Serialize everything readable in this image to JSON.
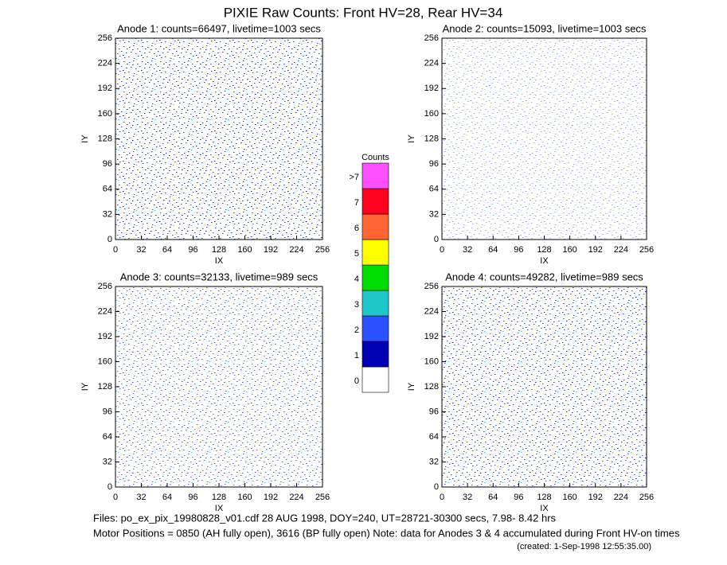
{
  "title": "PIXIE Raw Counts:  Front HV=28, Rear HV=34",
  "chart_data": [
    {
      "type": "heatmap",
      "title": "Anode 1: counts=66497, livetime=1003 secs",
      "x_label": "IX",
      "y_label": "IY",
      "xlim": [
        0,
        256
      ],
      "ylim": [
        0,
        256
      ],
      "xticks": [
        0,
        32,
        64,
        96,
        128,
        160,
        192,
        224,
        256
      ],
      "yticks": [
        0,
        32,
        64,
        96,
        128,
        160,
        192,
        224,
        256
      ]
    },
    {
      "type": "heatmap",
      "title": "Anode 2: counts=15093, livetime=1003 secs",
      "x_label": "IX",
      "y_label": "IY",
      "xlim": [
        0,
        256
      ],
      "ylim": [
        0,
        256
      ],
      "xticks": [
        0,
        32,
        64,
        96,
        128,
        160,
        192,
        224,
        256
      ],
      "yticks": [
        0,
        32,
        64,
        96,
        128,
        160,
        192,
        224,
        256
      ]
    },
    {
      "type": "heatmap",
      "title": "Anode 3: counts=32133, livetime=989 secs",
      "x_label": "IX",
      "y_label": "IY",
      "xlim": [
        0,
        256
      ],
      "ylim": [
        0,
        256
      ],
      "xticks": [
        0,
        32,
        64,
        96,
        128,
        160,
        192,
        224,
        256
      ],
      "yticks": [
        0,
        32,
        64,
        96,
        128,
        160,
        192,
        224,
        256
      ]
    },
    {
      "type": "heatmap",
      "title": "Anode 4: counts=49282, livetime=989 secs",
      "x_label": "IX",
      "y_label": "IY",
      "xlim": [
        0,
        256
      ],
      "ylim": [
        0,
        256
      ],
      "xticks": [
        0,
        32,
        64,
        96,
        128,
        160,
        192,
        224,
        256
      ],
      "yticks": [
        0,
        32,
        64,
        96,
        128,
        160,
        192,
        224,
        256
      ]
    }
  ],
  "colorbar": {
    "title": "Counts",
    "labels": [
      "0",
      "1",
      "2",
      "3",
      "4",
      "5",
      "6",
      "7",
      ">7"
    ],
    "colors": [
      "#ffffff",
      "#0000b4",
      "#2a50ff",
      "#1ec8c8",
      "#00dc00",
      "#ffff00",
      "#ff6432",
      "#ff0020",
      "#ff50ff"
    ]
  },
  "footer": {
    "files": "Files: po_ex_pix_19980828_v01.cdf    28 AUG 1998, DOY=240, UT=28721-30300 secs,  7.98- 8.42 hrs",
    "motor": "Motor Positions = 0850 (AH fully open), 3616 (BP fully open)    Note: data for Anodes 3 & 4 accumulated during Front HV-on times",
    "created": "(created:  1-Sep-1998 12:55:35.00)"
  }
}
